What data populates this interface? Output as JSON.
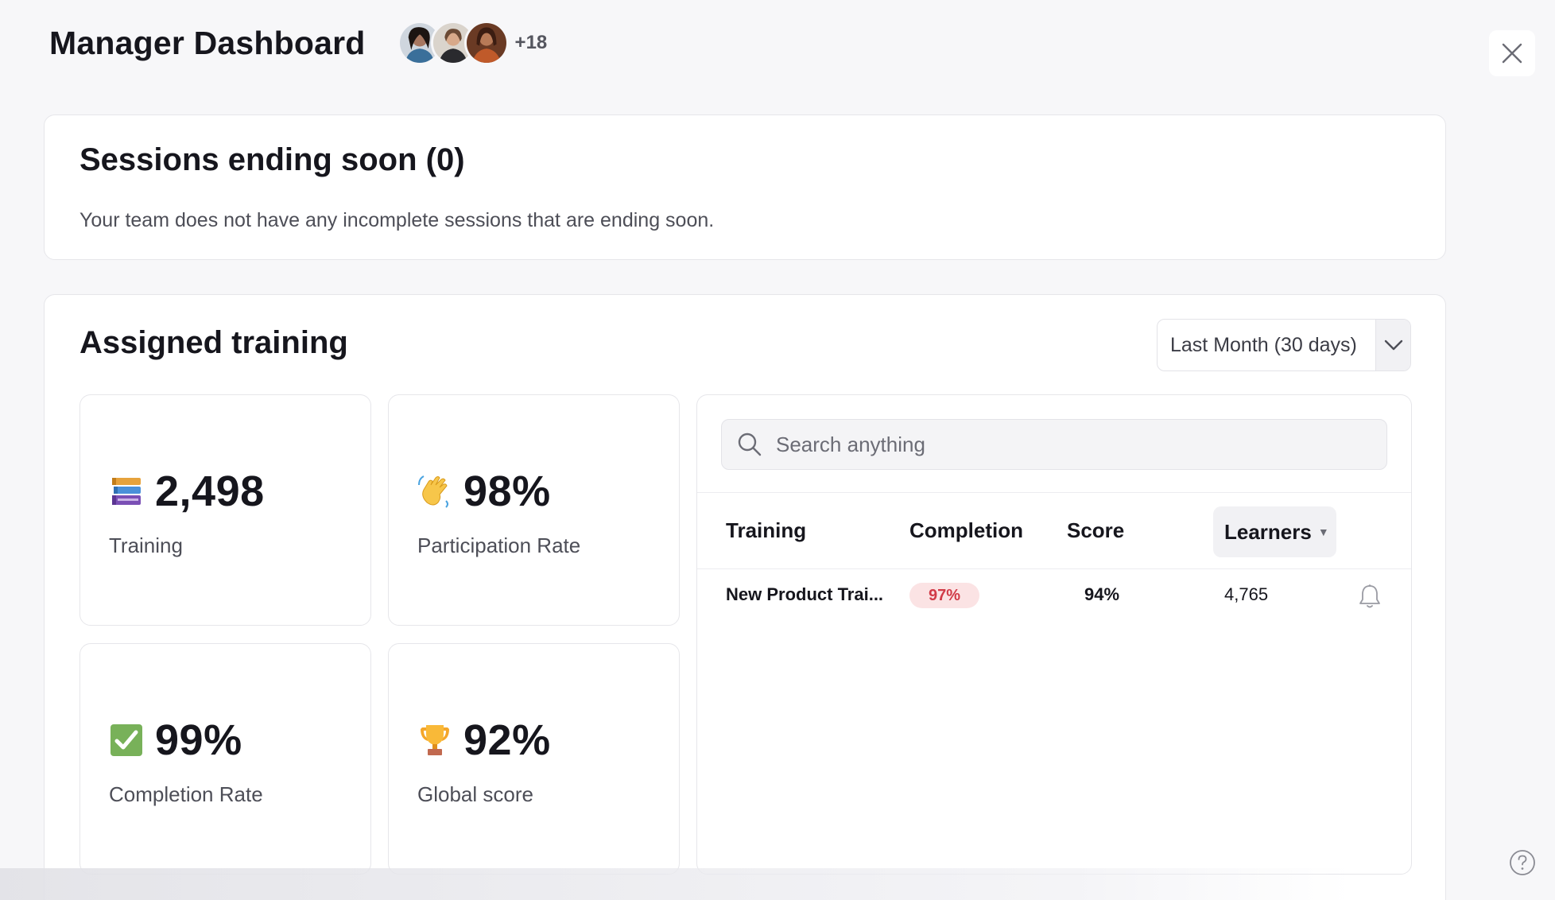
{
  "header": {
    "title": "Manager Dashboard",
    "avatar_more": "+18"
  },
  "sessions": {
    "heading": "Sessions ending soon (0)",
    "description": "Your team does not have any incomplete sessions that are ending soon."
  },
  "assigned": {
    "heading": "Assigned training",
    "period": "Last Month (30 days)",
    "stats": [
      {
        "icon": "books-icon",
        "value": "2,498",
        "label": "Training"
      },
      {
        "icon": "waving-hand-icon",
        "value": "98%",
        "label": "Participation Rate"
      },
      {
        "icon": "check-box-icon",
        "value": "99%",
        "label": "Completion Rate"
      },
      {
        "icon": "trophy-icon",
        "value": "92%",
        "label": "Global score"
      }
    ],
    "search": {
      "placeholder": "Search anything"
    },
    "table": {
      "columns": [
        "Training",
        "Completion",
        "Score",
        "Learners"
      ],
      "rows": [
        {
          "training": "New Product Trai...",
          "completion": "97%",
          "score": "94%",
          "learners": "4,765"
        }
      ]
    }
  },
  "colors": {
    "background": "#f7f7f9",
    "badge_bg": "#fbe3e4",
    "badge_text": "#d13a47"
  }
}
